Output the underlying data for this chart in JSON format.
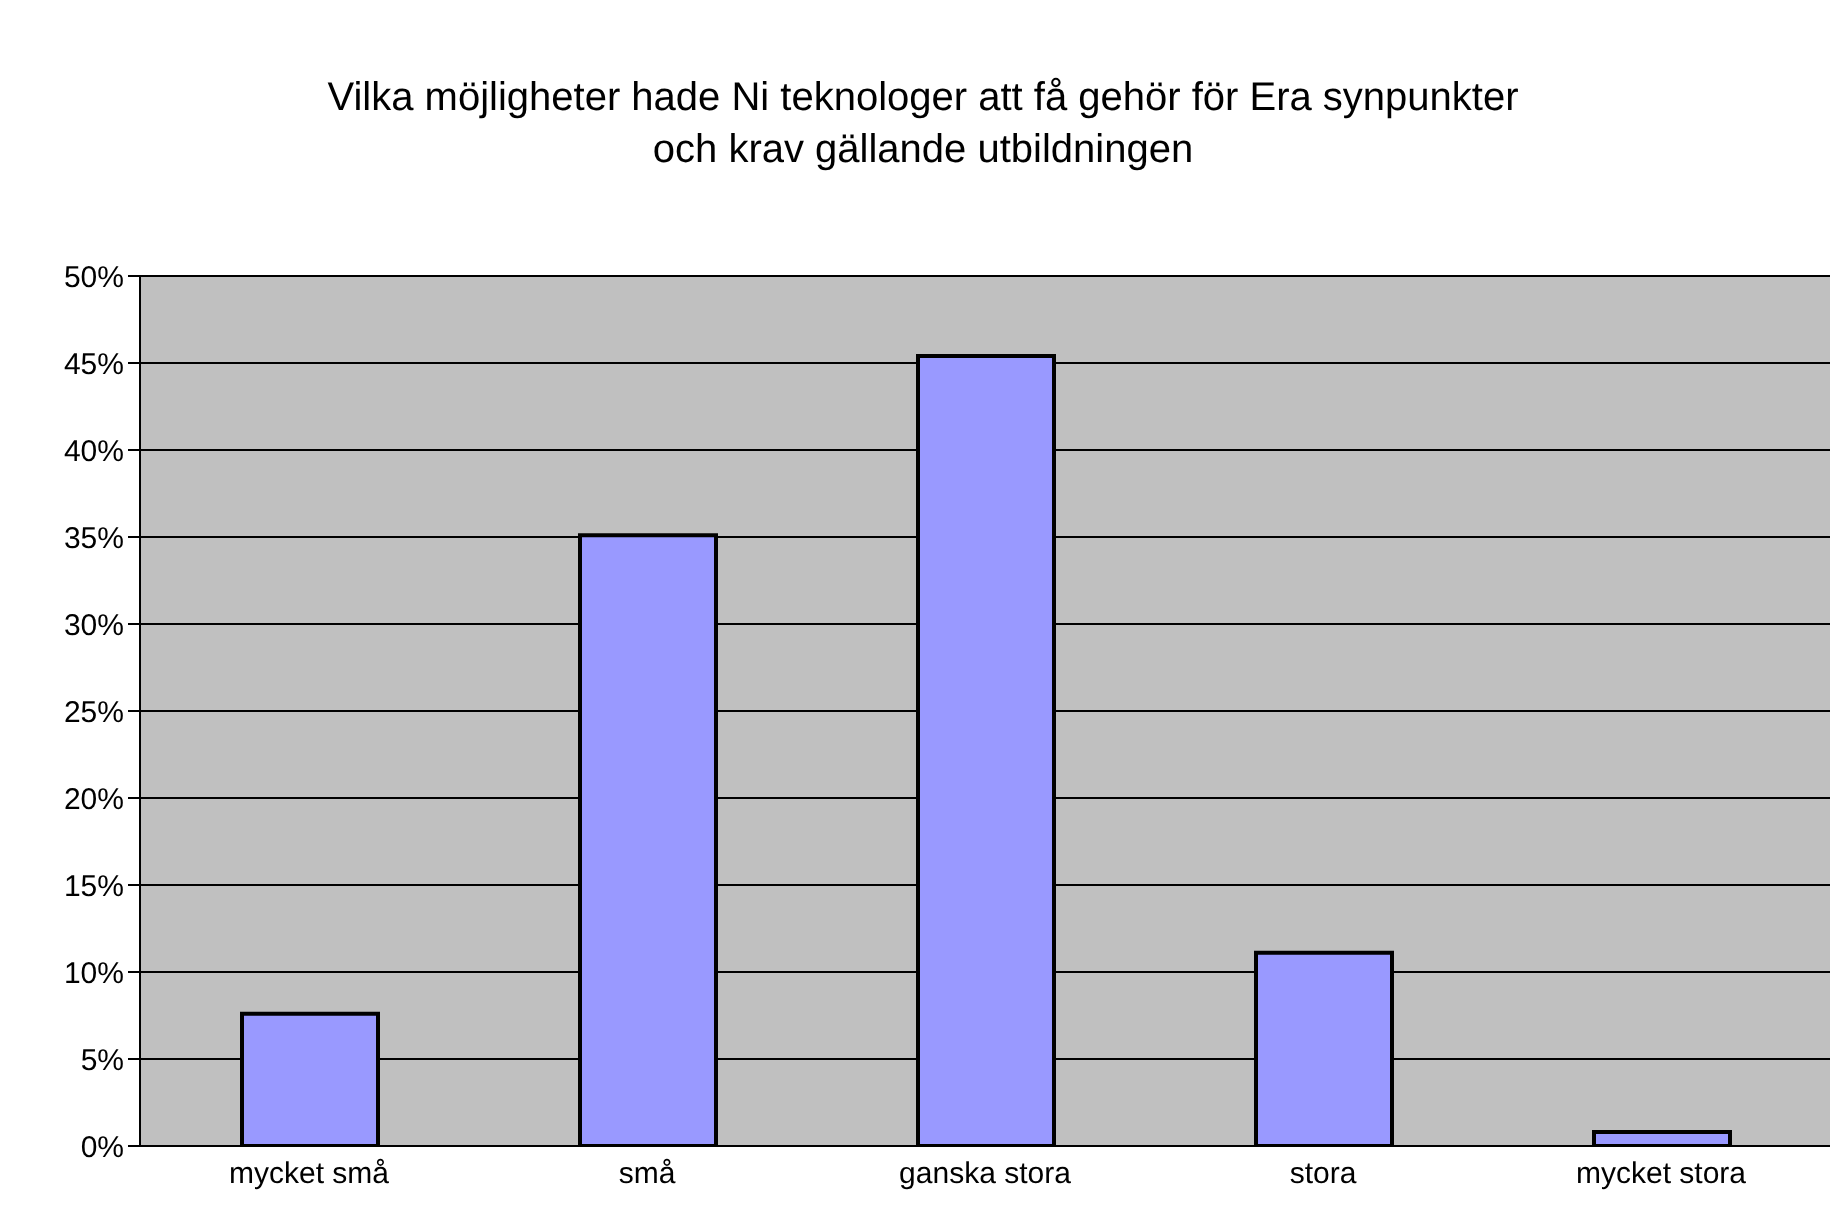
{
  "chart_data": {
    "type": "bar",
    "title": "Vilka möjligheter hade Ni teknologer att få gehör för Era synpunkter och krav gällande utbildningen",
    "categories": [
      "mycket små",
      "små",
      "ganska stora",
      "stora",
      "mycket stora"
    ],
    "values": [
      7.6,
      35.1,
      45.4,
      11.1,
      0.8
    ],
    "color": "#9999ff",
    "ylim": [
      0,
      50
    ],
    "yticks": [
      {
        "value": 0,
        "label": "0%"
      },
      {
        "value": 5,
        "label": "5%"
      },
      {
        "value": 10,
        "label": "10%"
      },
      {
        "value": 15,
        "label": "15%"
      },
      {
        "value": 20,
        "label": "20%"
      },
      {
        "value": 25,
        "label": "25%"
      },
      {
        "value": 30,
        "label": "30%"
      },
      {
        "value": 35,
        "label": "35%"
      },
      {
        "value": 40,
        "label": "40%"
      },
      {
        "value": 45,
        "label": "45%"
      },
      {
        "value": 50,
        "label": "50%"
      }
    ],
    "grid": "y",
    "legend": false
  }
}
